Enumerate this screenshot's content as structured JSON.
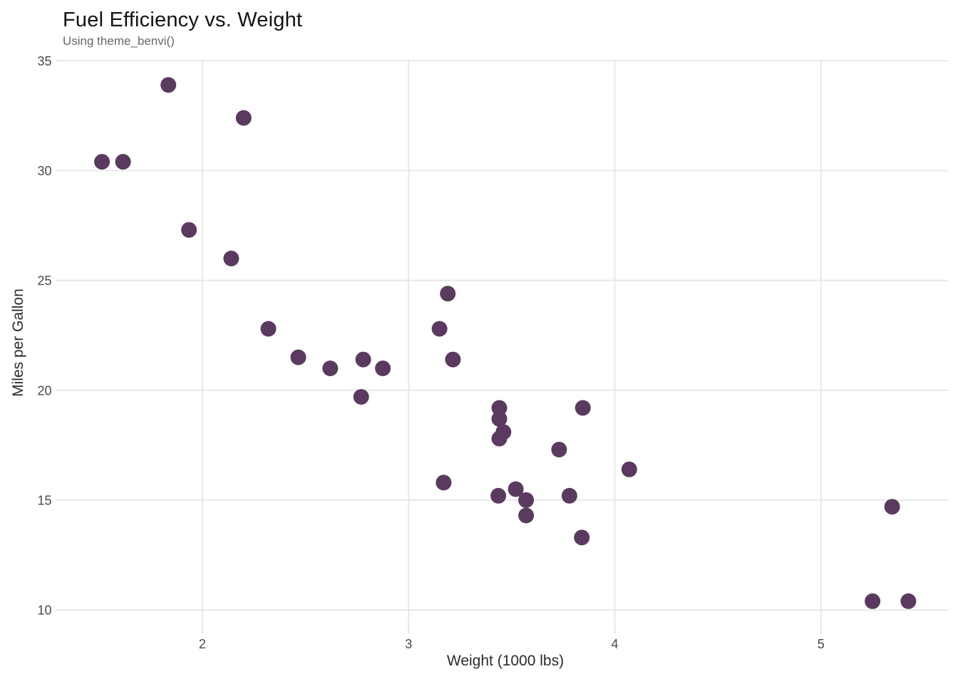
{
  "page": {
    "background": "#FFFFFF"
  },
  "chart_data": {
    "type": "scatter",
    "title": "Fuel Efficiency vs. Weight",
    "subtitle": "Using theme_benvi()",
    "xlabel": "Weight (1000 lbs)",
    "ylabel": "Miles per Gallon",
    "x_ticks": [
      2,
      3,
      4,
      5
    ],
    "y_ticks": [
      10,
      15,
      20,
      25,
      30,
      35
    ],
    "xlim": [
      1.3175,
      5.6195
    ],
    "ylim": [
      9.225,
      35.075
    ],
    "grid": true,
    "legend": "none",
    "point_color": "#5A3A5E",
    "point_radius": 11,
    "grid_color": "#E8E8E8",
    "tick_color": "#E3E3E3",
    "tick_label_color": "#4A4A4A",
    "axis_title_color": "#2B2B2B",
    "title_color": "#141414",
    "subtitle_color": "#666666",
    "points": [
      {
        "x": 2.62,
        "y": 21.0
      },
      {
        "x": 2.875,
        "y": 21.0
      },
      {
        "x": 2.32,
        "y": 22.8
      },
      {
        "x": 3.215,
        "y": 21.4
      },
      {
        "x": 3.44,
        "y": 18.7
      },
      {
        "x": 3.46,
        "y": 18.1
      },
      {
        "x": 3.57,
        "y": 14.3
      },
      {
        "x": 3.19,
        "y": 24.4
      },
      {
        "x": 3.15,
        "y": 22.8
      },
      {
        "x": 3.44,
        "y": 19.2
      },
      {
        "x": 3.44,
        "y": 17.8
      },
      {
        "x": 4.07,
        "y": 16.4
      },
      {
        "x": 3.73,
        "y": 17.3
      },
      {
        "x": 3.78,
        "y": 15.2
      },
      {
        "x": 5.25,
        "y": 10.4
      },
      {
        "x": 5.424,
        "y": 10.4
      },
      {
        "x": 5.345,
        "y": 14.7
      },
      {
        "x": 2.2,
        "y": 32.4
      },
      {
        "x": 1.615,
        "y": 30.4
      },
      {
        "x": 1.835,
        "y": 33.9
      },
      {
        "x": 2.465,
        "y": 21.5
      },
      {
        "x": 3.52,
        "y": 15.5
      },
      {
        "x": 3.435,
        "y": 15.2
      },
      {
        "x": 3.84,
        "y": 13.3
      },
      {
        "x": 3.845,
        "y": 19.2
      },
      {
        "x": 1.935,
        "y": 27.3
      },
      {
        "x": 2.14,
        "y": 26.0
      },
      {
        "x": 1.513,
        "y": 30.4
      },
      {
        "x": 3.17,
        "y": 15.8
      },
      {
        "x": 2.77,
        "y": 19.7
      },
      {
        "x": 3.57,
        "y": 15.0
      },
      {
        "x": 2.78,
        "y": 21.4
      }
    ]
  }
}
